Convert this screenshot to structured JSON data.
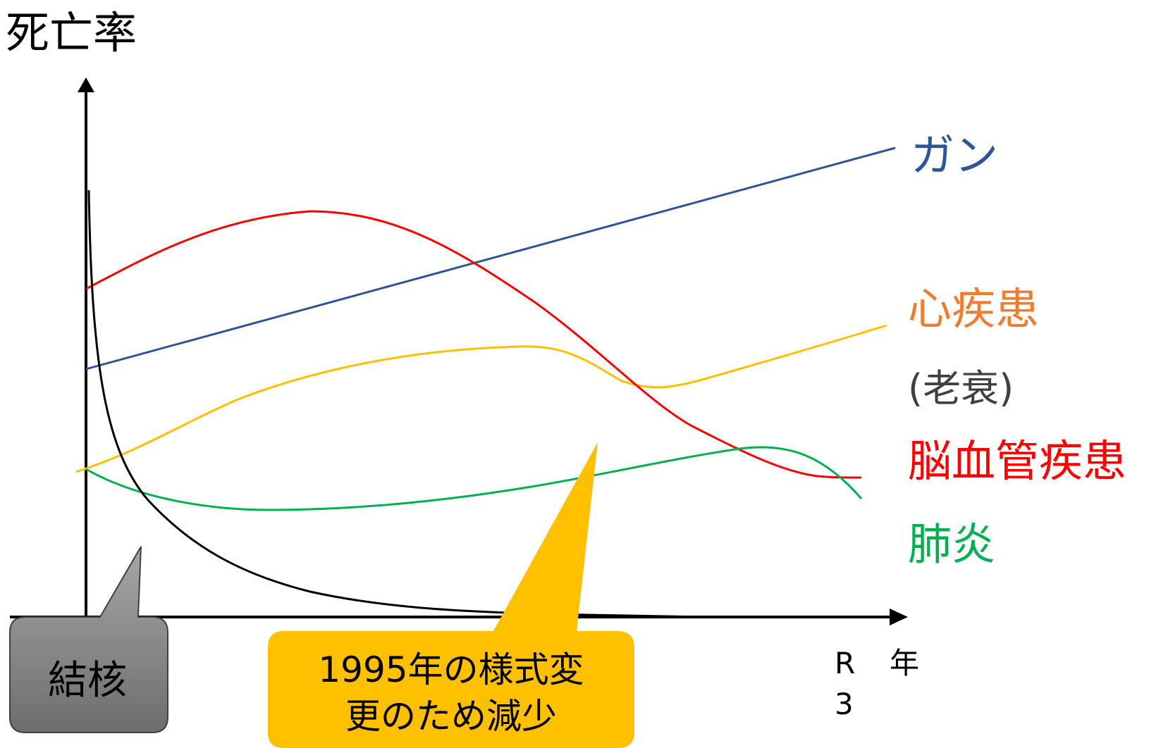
{
  "chart_data": {
    "type": "line",
    "ylabel": "死亡率",
    "xlabel": "年",
    "x_end_label": "R3",
    "legend_placement": "right",
    "grid": false,
    "series": [
      {
        "name": "ガン",
        "color": "#2f5597"
      },
      {
        "name": "心疾患",
        "color": "#ffc000",
        "label_color": "#ed7d31",
        "sublabel": "(老衰)",
        "sublabel_color": "#404040"
      },
      {
        "name": "脳血管疾患",
        "color": "#ff0000"
      },
      {
        "name": "肺炎",
        "color": "#00b050"
      },
      {
        "name": "結核",
        "color": "#000000"
      }
    ],
    "annotations": [
      {
        "text": "結核",
        "fill": "#808080"
      },
      {
        "text_lines": [
          "1995年の様式変",
          "更のため減少"
        ],
        "fill": "#ffc000"
      }
    ]
  }
}
